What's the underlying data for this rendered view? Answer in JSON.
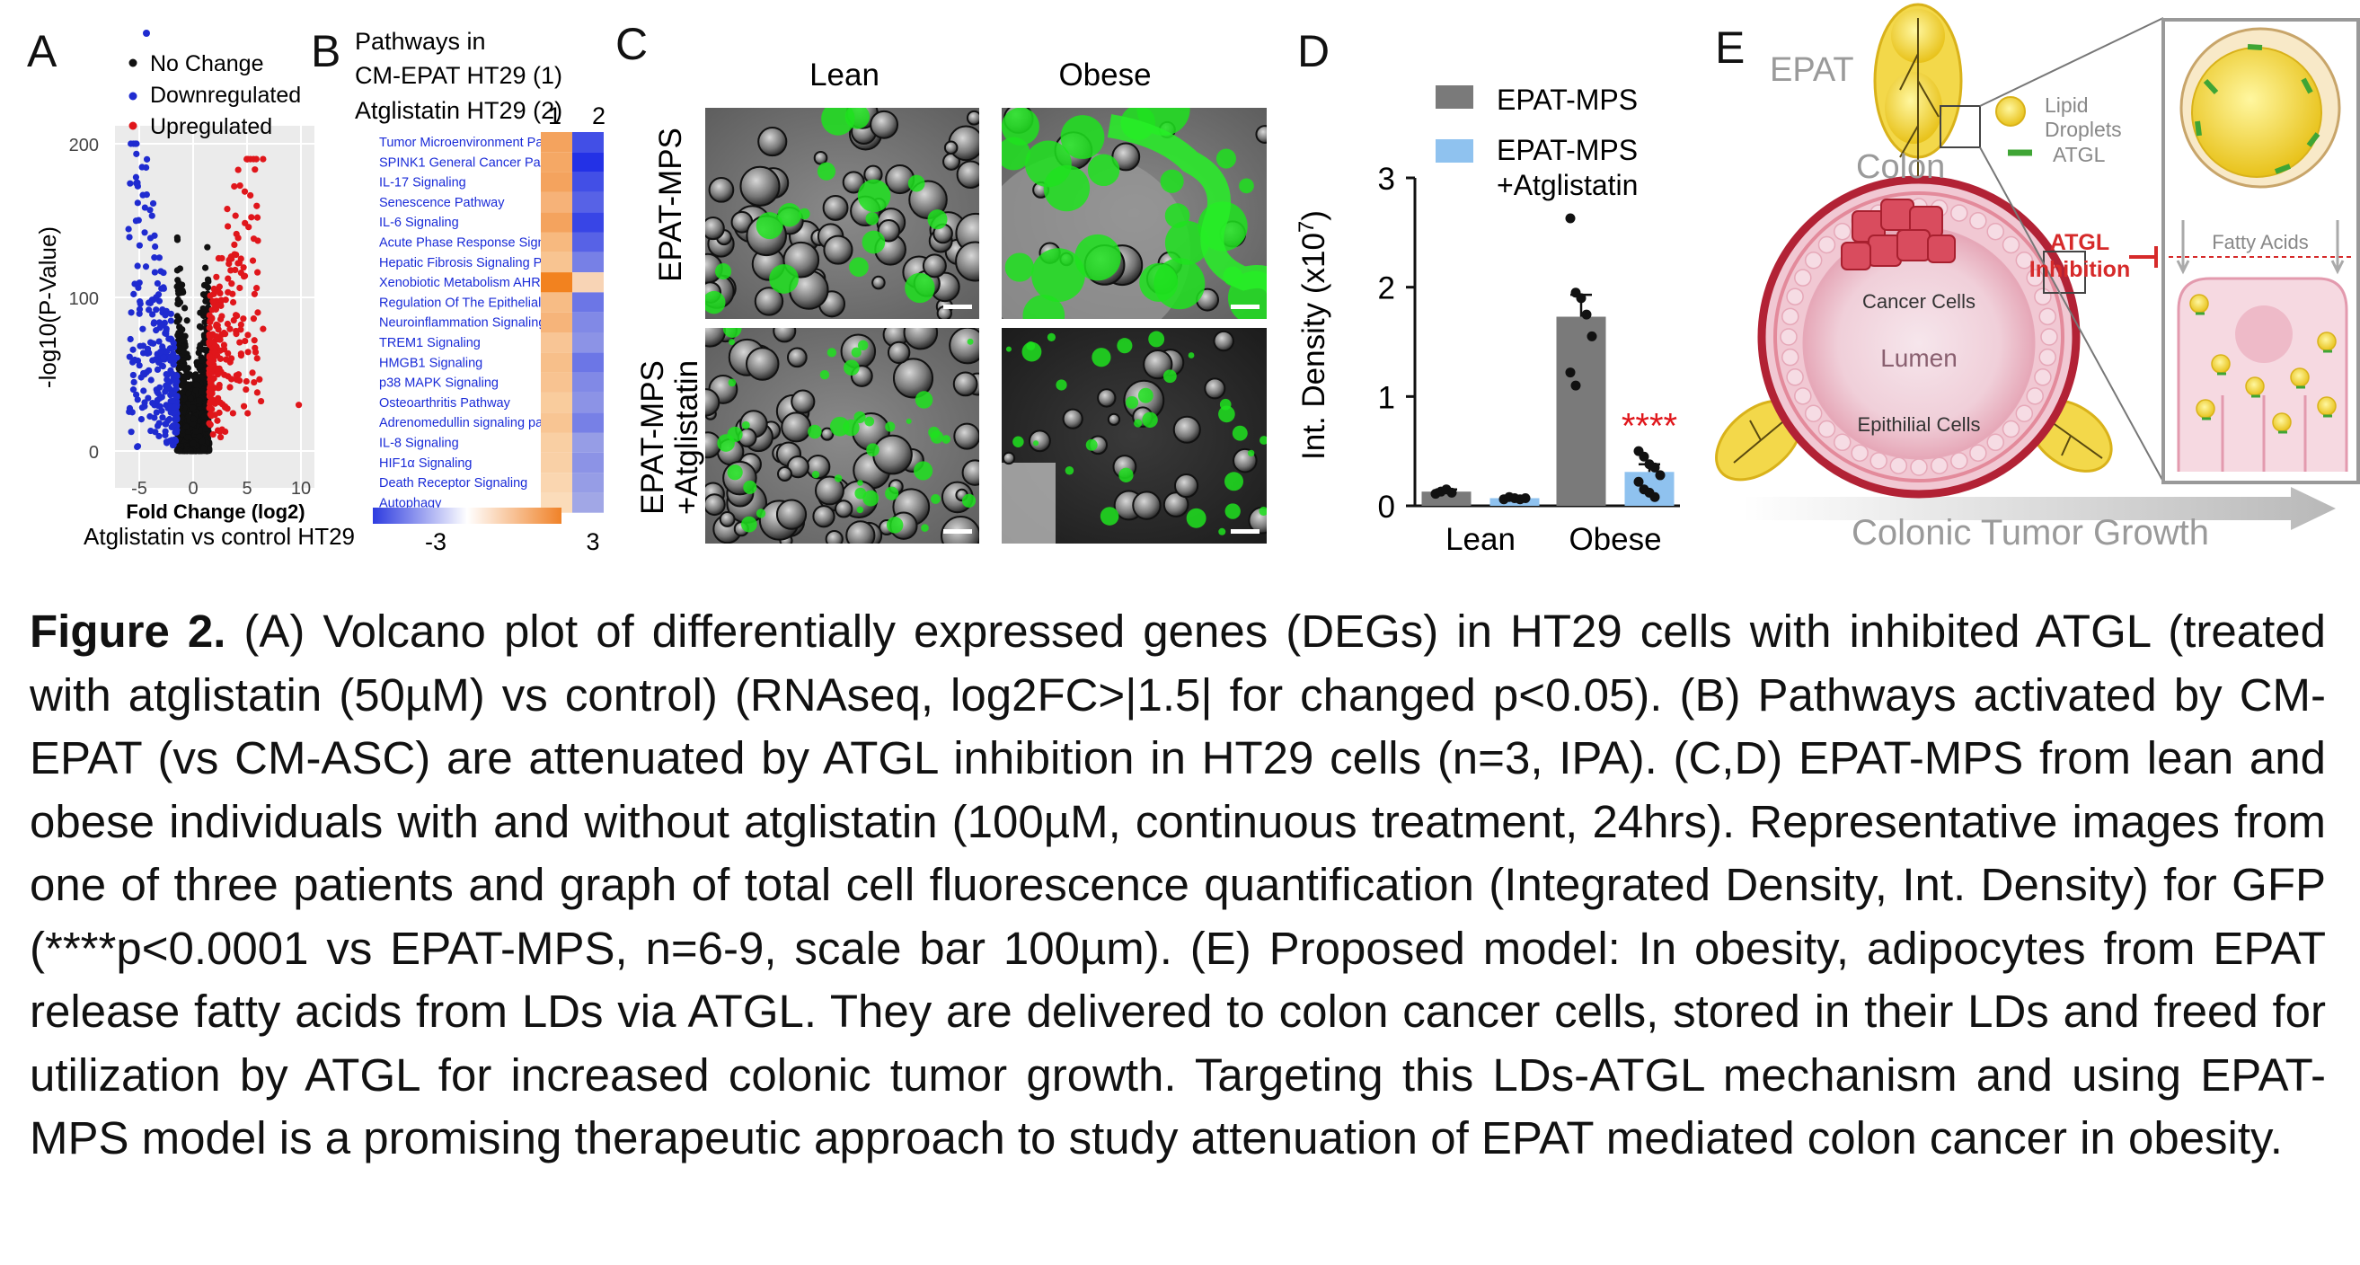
{
  "panels": {
    "a": {
      "letter": "A",
      "legend": [
        "No Change",
        "Downregulated",
        "Upregulated"
      ],
      "ylabel": "-log10(P-Value)",
      "xlabel": "Fold Change (log2)",
      "subtitle": "Atglistatin  vs control HT29",
      "yticks": [
        "200",
        "100",
        "0"
      ],
      "xticks": [
        "-5",
        "0",
        "5",
        "10"
      ],
      "colors": {
        "nochange": "#111111",
        "down": "#1f2bd0",
        "up": "#e0161b"
      }
    },
    "b": {
      "letter": "B",
      "title_lines": [
        "Pathways in",
        "CM-EPAT HT29 (1)",
        "Atglistatin HT29 (2)"
      ],
      "col_labels": [
        "1",
        "2"
      ],
      "pathways": [
        "Tumor Microenvironment Pat...",
        "SPINK1 General Cancer Pat...",
        "IL-17 Signaling",
        "Senescence Pathway",
        "IL-6 Signaling",
        "Acute Phase Response Sign...",
        "Hepatic Fibrosis Signaling P...",
        "Xenobiotic Metabolism AHR ...",
        "Regulation Of The Epithelial ...",
        "Neuroinflammation Signaling ...",
        "TREM1 Signaling",
        "HMGB1 Signaling",
        "p38 MAPK Signaling",
        "Osteoarthritis Pathway",
        "Adrenomedullin signaling pat...",
        "IL-8 Signaling",
        "HIF1α Signaling",
        "Death Receptor Signaling",
        "Autophagy"
      ],
      "scale_min": "-3",
      "scale_max": "3"
    },
    "c": {
      "letter": "C",
      "col_labels": [
        "Lean",
        "Obese"
      ],
      "row_labels": [
        "EPAT-MPS",
        "EPAT-MPS\n+Atglistatin"
      ],
      "row1": "EPAT-MPS",
      "row2a": "EPAT-MPS",
      "row2b": "+Atglistatin"
    },
    "d": {
      "letter": "D",
      "legend": [
        "EPAT-MPS",
        "EPAT-MPS",
        "+Atglistatin"
      ],
      "ylabel": "Int. Density  (x10",
      "ylabel_sup": "7",
      "ylabel_end": ")",
      "significance": "****"
    },
    "e": {
      "letter": "E",
      "labels": {
        "epat": "EPAT",
        "colon": "Colon",
        "lipid1": "Lipid",
        "lipid2": "Droplets",
        "atgl": "ATGL",
        "inhib1": "ATGL",
        "inhib2": "Inhibition",
        "cancer": "Cancer Cells",
        "lumen": "Lumen",
        "epith": "Epithilial Cells",
        "fatty": "Fatty Acids",
        "growth": "Colonic Tumor Growth"
      }
    }
  },
  "chart_data": {
    "type": "bar",
    "categories": [
      "Lean",
      "Obese"
    ],
    "series": [
      {
        "name": "EPAT-MPS",
        "values": [
          0.13,
          1.73
        ],
        "error": [
          0.02,
          0.2
        ],
        "color": "#7a7a7a",
        "points": [
          [
            0.11,
            0.13,
            0.15,
            0.12
          ],
          [
            2.63,
            1.95,
            1.9,
            1.75,
            1.55,
            1.22,
            1.1
          ]
        ]
      },
      {
        "name": "EPAT-MPS +Atglistatin",
        "values": [
          0.07,
          0.31
        ],
        "error": [
          0.01,
          0.07
        ],
        "color": "#8fc2ef",
        "points": [
          [
            0.06,
            0.08,
            0.07,
            0.06,
            0.07
          ],
          [
            0.5,
            0.45,
            0.38,
            0.35,
            0.28,
            0.22,
            0.15,
            0.12,
            0.08
          ]
        ]
      }
    ],
    "title": "",
    "xlabel": "",
    "ylabel": "Int. Density (x10^7)",
    "ylim": [
      0,
      3
    ],
    "yticks": [
      0,
      1,
      2,
      3
    ]
  },
  "caption": {
    "label": "Figure 2.",
    "text": " (A) Volcano plot of differentially expressed genes (DEGs) in HT29 cells with inhibited ATGL (treated with atglistatin (50µM) vs control) (RNAseq, log2FC>|1.5| for changed p<0.05). (B) Pathways activated by CM-EPAT (vs CM-ASC) are attenuated by ATGL inhibition in HT29 cells (n=3, IPA). (C,D) EPAT-MPS from lean and obese individuals with and without atglistatin (100µM, continuous treatment, 24hrs). Representative images from one of three patients and graph of total cell fluorescence quantification (Integrated Density, Int. Density) for GFP (****p<0.0001 vs EPAT-MPS, n=6-9, scale bar 100µm). (E) Proposed model: In obesity, adipocytes from EPAT release fatty acids from LDs via ATGL. They are delivered to colon cancer cells, stored in their LDs and freed for utilization by ATGL for increased colonic tumor growth. Targeting this LDs-ATGL mechanism and using EPAT-MPS model is a promising therapeutic approach to study attenuation of EPAT mediated colon cancer in obesity."
  }
}
